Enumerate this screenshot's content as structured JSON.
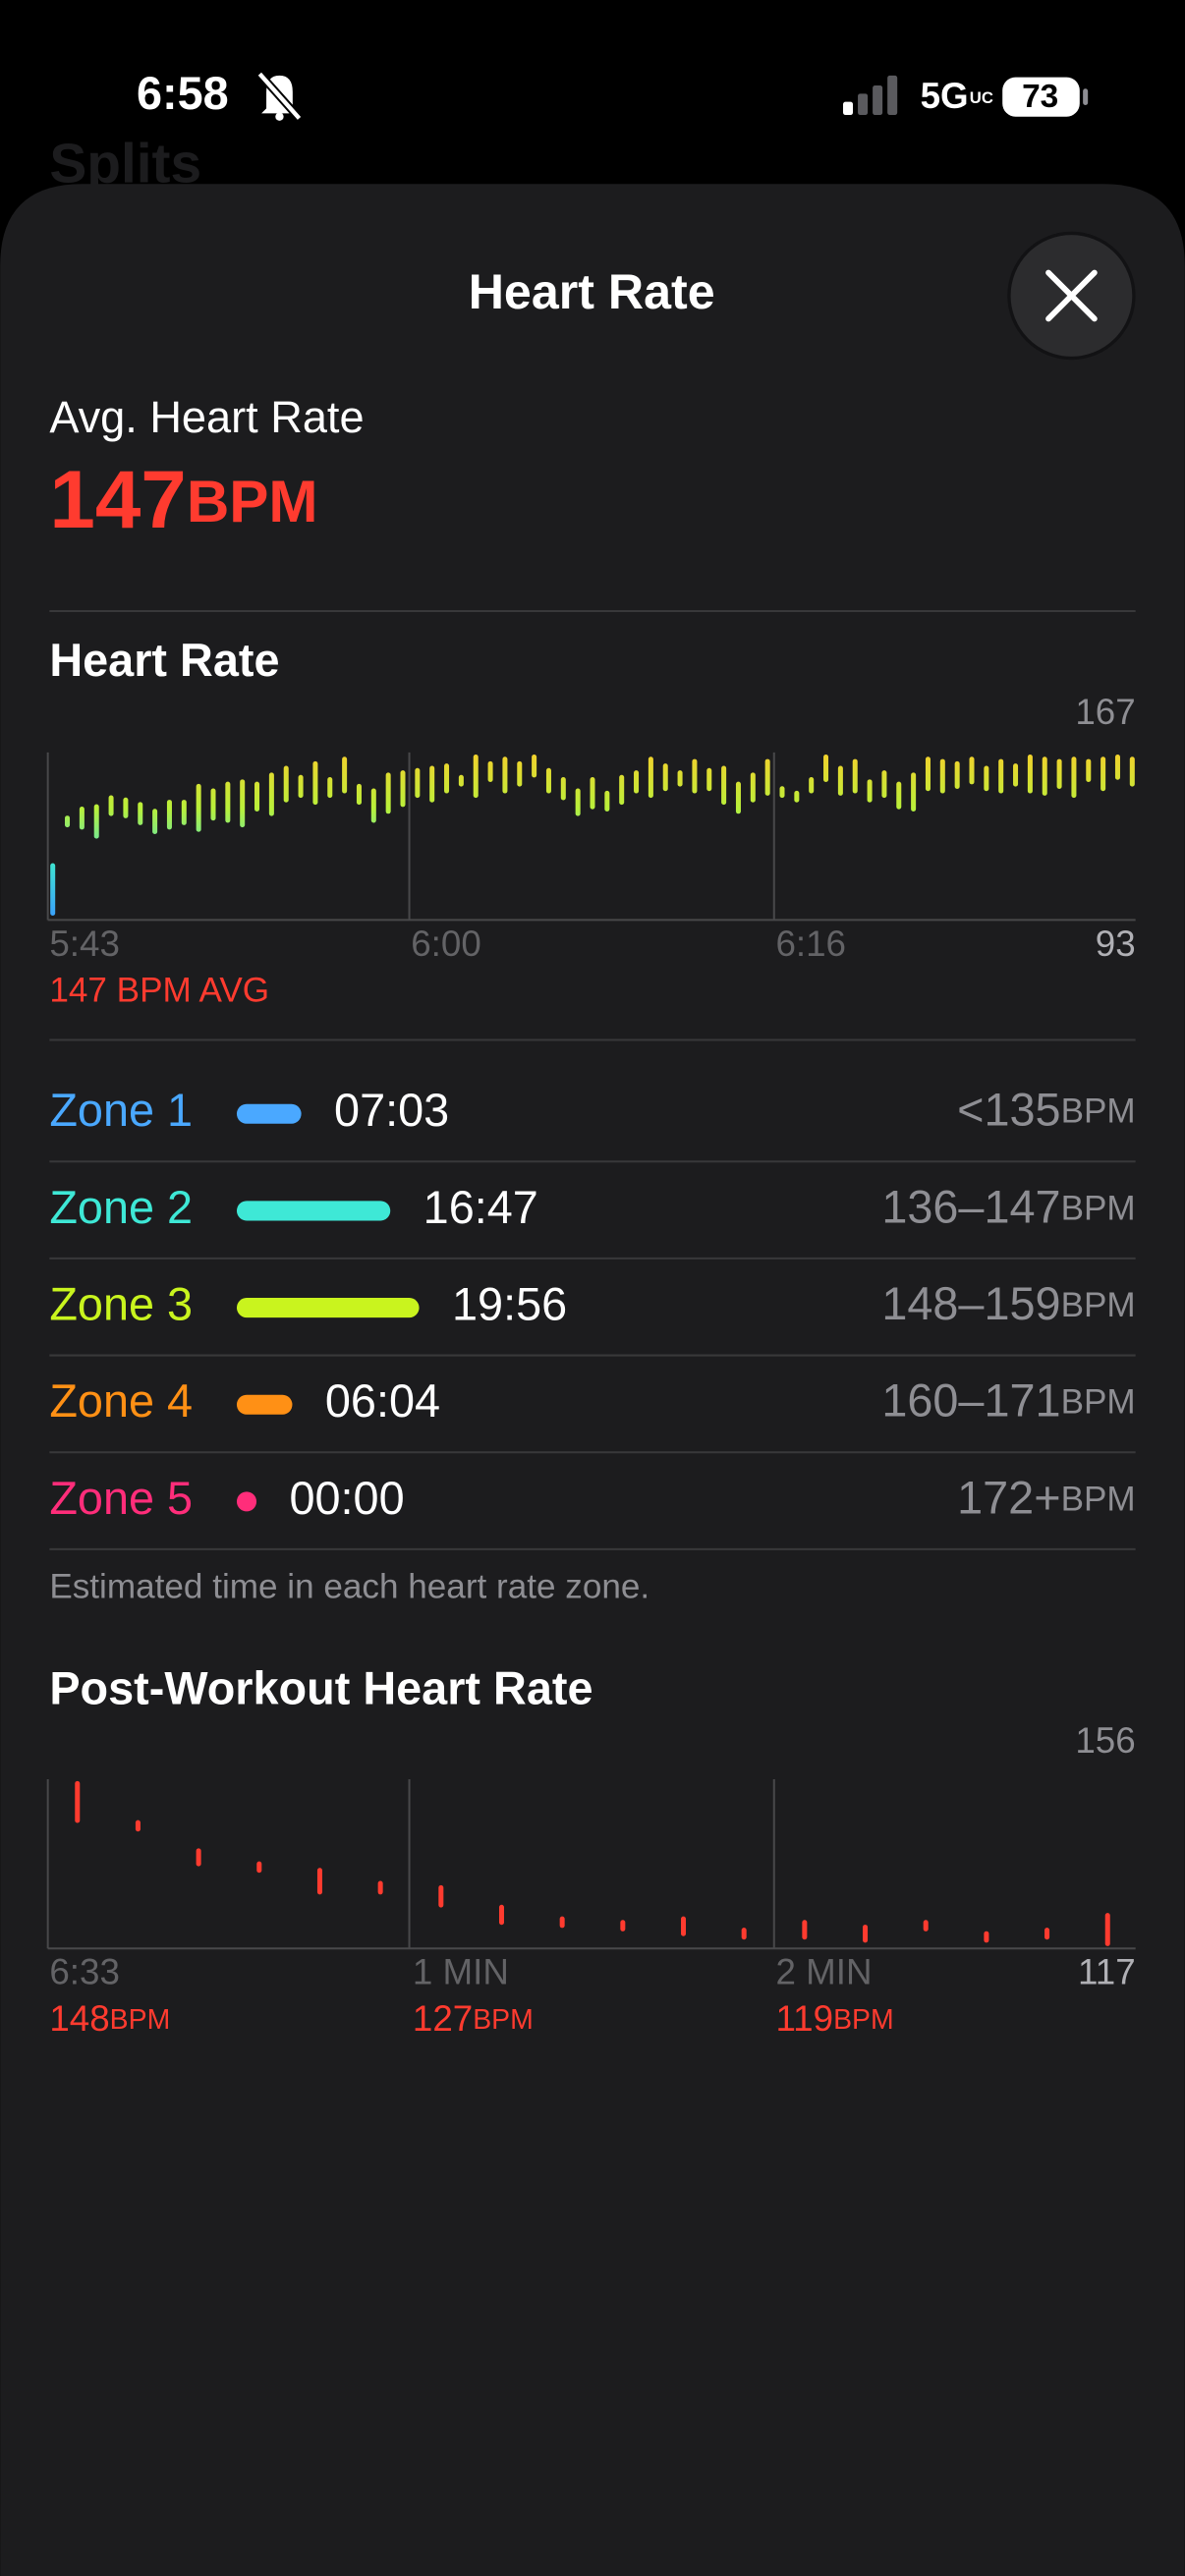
{
  "status_bar": {
    "time": "6:58",
    "network": "5G",
    "network_sub": "UC",
    "battery": "73"
  },
  "background_title": "Splits",
  "header": {
    "title": "Heart Rate"
  },
  "average": {
    "label": "Avg. Heart Rate",
    "value": 147,
    "unit": "BPM"
  },
  "heart_rate_chart": {
    "type": "range-bar",
    "title": "Heart Rate",
    "ylim": [
      93,
      167
    ],
    "x_labels": [
      "5:43",
      "6:00",
      "6:16"
    ],
    "avg_label": "147 BPM AVG",
    "gradient_colors": [
      "#3a9cff",
      "#3fe3d2",
      "#b9f03a",
      "#f4d02c"
    ],
    "ranges": [
      [
        96,
        117
      ],
      [
        135,
        138
      ],
      [
        134,
        142
      ],
      [
        130,
        143
      ],
      [
        140,
        147
      ],
      [
        139,
        146
      ],
      [
        136,
        144
      ],
      [
        132,
        141
      ],
      [
        134,
        145
      ],
      [
        136,
        145
      ],
      [
        133,
        152
      ],
      [
        138,
        150
      ],
      [
        137,
        153
      ],
      [
        135,
        154
      ],
      [
        142,
        153
      ],
      [
        140,
        157
      ],
      [
        146,
        160
      ],
      [
        148,
        156
      ],
      [
        145,
        162
      ],
      [
        148,
        155
      ],
      [
        150,
        164
      ],
      [
        145,
        152
      ],
      [
        137,
        150
      ],
      [
        141,
        157
      ],
      [
        144,
        158
      ],
      [
        148,
        159
      ],
      [
        146,
        160
      ],
      [
        150,
        161
      ],
      [
        153,
        156
      ],
      [
        148,
        165
      ],
      [
        155,
        162
      ],
      [
        150,
        164
      ],
      [
        153,
        162
      ],
      [
        157,
        165
      ],
      [
        150,
        159
      ],
      [
        147,
        155
      ],
      [
        140,
        150
      ],
      [
        143,
        155
      ],
      [
        142,
        149
      ],
      [
        145,
        156
      ],
      [
        150,
        158
      ],
      [
        148,
        164
      ],
      [
        151,
        161
      ],
      [
        153,
        158
      ],
      [
        150,
        163
      ],
      [
        151,
        159
      ],
      [
        145,
        160
      ],
      [
        141,
        153
      ],
      [
        146,
        157
      ],
      [
        149,
        163
      ],
      [
        148,
        151
      ],
      [
        146,
        149
      ],
      [
        150,
        155
      ],
      [
        155,
        165
      ],
      [
        149,
        160
      ],
      [
        150,
        163
      ],
      [
        146,
        154
      ],
      [
        148,
        158
      ],
      [
        143,
        153
      ],
      [
        142,
        157
      ],
      [
        151,
        164
      ],
      [
        150,
        163
      ],
      [
        152,
        162
      ],
      [
        154,
        164
      ],
      [
        151,
        160
      ],
      [
        150,
        163
      ],
      [
        153,
        161
      ],
      [
        150,
        165
      ],
      [
        149,
        164
      ],
      [
        152,
        163
      ],
      [
        148,
        164
      ],
      [
        155,
        163
      ],
      [
        151,
        164
      ],
      [
        156,
        165
      ],
      [
        153,
        164
      ]
    ]
  },
  "zones": {
    "unit": "BPM",
    "rows": [
      {
        "name": "Zone 1",
        "time": "07:03",
        "range": "<135",
        "color": "#4aa8ff"
      },
      {
        "name": "Zone 2",
        "time": "16:47",
        "range": "136–147",
        "color": "#3ee8d6"
      },
      {
        "name": "Zone 3",
        "time": "19:56",
        "range": "148–159",
        "color": "#c9f41e"
      },
      {
        "name": "Zone 4",
        "time": "06:04",
        "range": "160–171",
        "color": "#ff9015"
      },
      {
        "name": "Zone 5",
        "time": "00:00",
        "range": "172+",
        "color": "#ff2d7a"
      }
    ],
    "note": "Estimated time in each heart rate zone."
  },
  "post_workout": {
    "type": "range-bar",
    "title": "Post-Workout Heart Rate",
    "ylim": [
      117,
      156
    ],
    "color": "#ff3b2f",
    "unit": "BPM",
    "readings": [
      {
        "time": "6:33",
        "value": 148
      },
      {
        "time": "1 MIN",
        "value": 127
      },
      {
        "time": "2 MIN",
        "value": 119
      }
    ],
    "ranges": [
      [
        146.5,
        155
      ],
      [
        144.5,
        146
      ],
      [
        136.5,
        139.5
      ],
      [
        135,
        136.5
      ],
      [
        130,
        135
      ],
      [
        130,
        132
      ],
      [
        127,
        131
      ],
      [
        123,
        126.5
      ],
      [
        122.3,
        123.8
      ],
      [
        121.5,
        123
      ],
      [
        120.4,
        123.8
      ],
      [
        119.6,
        121.2
      ],
      [
        119.6,
        123
      ],
      [
        118.9,
        121.9
      ],
      [
        121.5,
        123
      ],
      [
        118.9,
        120.4
      ],
      [
        119.6,
        121.2
      ],
      [
        118.1,
        124.6
      ]
    ]
  }
}
